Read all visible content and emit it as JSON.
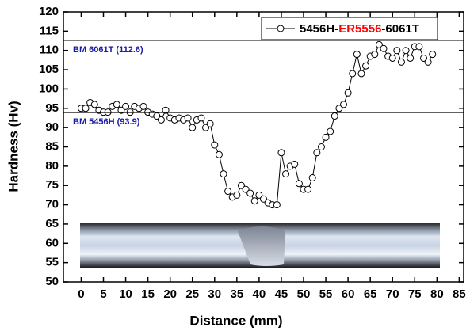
{
  "chart_data": {
    "type": "line",
    "xlabel": "Distance (mm)",
    "ylabel": "Hardness (Hv)",
    "xlim": [
      -4,
      86
    ],
    "ylim": [
      50,
      120
    ],
    "xticks": [
      0,
      5,
      10,
      15,
      20,
      25,
      30,
      35,
      40,
      45,
      50,
      55,
      60,
      65,
      70,
      75,
      80,
      85
    ],
    "yticks": [
      50,
      55,
      60,
      65,
      70,
      75,
      80,
      85,
      90,
      95,
      100,
      105,
      110,
      115,
      120
    ],
    "legend_parts": [
      {
        "text": "5456H-",
        "color": "#000000"
      },
      {
        "text": "ER5556",
        "color": "#ff0000"
      },
      {
        "text": "-6061T",
        "color": "#000000"
      }
    ],
    "reference_lines": [
      {
        "value": 112.6,
        "label": "BM 6061T (112.6)",
        "color": "#1a1aa8"
      },
      {
        "value": 93.9,
        "label": "BM 5456H (93.9)",
        "color": "#1a1aa8"
      }
    ],
    "series": [
      {
        "color": "#000000",
        "x": [
          0,
          1,
          2,
          3,
          4,
          5,
          6,
          7,
          8,
          9,
          10,
          11,
          12,
          13,
          14,
          15,
          16,
          17,
          18,
          19,
          20,
          21,
          22,
          23,
          24,
          25,
          26,
          27,
          28,
          29,
          30,
          31,
          32,
          33,
          34,
          35,
          36,
          37,
          38,
          39,
          40,
          41,
          42,
          43,
          44,
          45,
          46,
          47,
          48,
          49,
          50,
          51,
          52,
          53,
          54,
          55,
          56,
          57,
          58,
          59,
          60,
          61,
          62,
          63,
          64,
          65,
          66,
          67,
          68,
          69,
          70,
          71,
          72,
          73,
          74,
          75,
          76,
          77,
          78,
          79
        ],
        "values": [
          95,
          95,
          96.5,
          96,
          94.5,
          94,
          94,
          95.5,
          96,
          94.5,
          95.5,
          94,
          95.5,
          95,
          95.5,
          94,
          93.5,
          93,
          92,
          94.5,
          92.5,
          92,
          92.5,
          92,
          92.5,
          90,
          92,
          92.5,
          90,
          91,
          85.5,
          83,
          78,
          73.5,
          72,
          72.5,
          75,
          74,
          73,
          71,
          72.5,
          71.5,
          70.5,
          70,
          70,
          83.5,
          78,
          80,
          80.5,
          75.5,
          74,
          74,
          77,
          83.5,
          85,
          87.5,
          89,
          93,
          95,
          96,
          99,
          104,
          109,
          104,
          106,
          108.5,
          109,
          111.5,
          110.5,
          108.5,
          108,
          110,
          107,
          110,
          108,
          111,
          111,
          108,
          107,
          109
        ]
      }
    ]
  }
}
